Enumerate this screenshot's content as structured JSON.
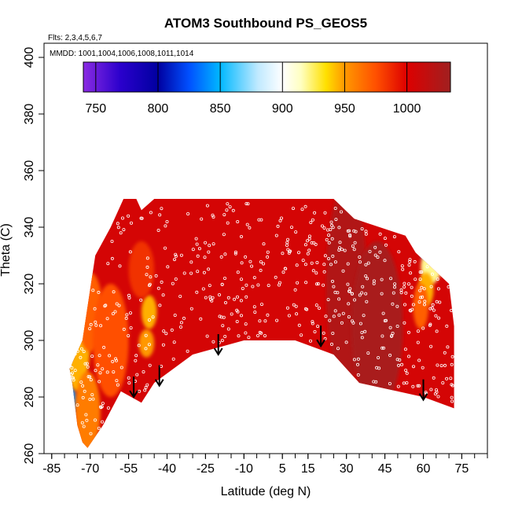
{
  "chart_data": {
    "type": "heatmap",
    "title": "ATOM3 Southbound PS_GEOS5",
    "flights_label": "Flts: 2,3,4,5,6,7",
    "mmdd_label": "MMDD: 1001,1004,1006,1008,1011,1014",
    "xlabel": "Latitude (deg N)",
    "ylabel": "Theta (C)",
    "xlim": [
      -88,
      85
    ],
    "ylim": [
      260,
      405
    ],
    "x_ticks": [
      -85,
      -70,
      -55,
      -40,
      -25,
      -10,
      5,
      15,
      30,
      45,
      60,
      75
    ],
    "x_minor_step": 5,
    "y_ticks": [
      260,
      280,
      300,
      320,
      340,
      360,
      380,
      400
    ],
    "colorbar": {
      "ticks": [
        750,
        800,
        850,
        900,
        950,
        1000
      ],
      "range": [
        740,
        1035
      ],
      "stops": [
        {
          "v": 740,
          "c": "#8a2be2"
        },
        {
          "v": 770,
          "c": "#2a00cc"
        },
        {
          "v": 800,
          "c": "#0000a0"
        },
        {
          "v": 825,
          "c": "#0050ff"
        },
        {
          "v": 850,
          "c": "#00b8ff"
        },
        {
          "v": 880,
          "c": "#bfe9ff"
        },
        {
          "v": 900,
          "c": "#ffffff"
        },
        {
          "v": 915,
          "c": "#ffffc0"
        },
        {
          "v": 935,
          "c": "#ffe000"
        },
        {
          "v": 950,
          "c": "#ff9800"
        },
        {
          "v": 975,
          "c": "#ff5000"
        },
        {
          "v": 1000,
          "c": "#dd0000"
        },
        {
          "v": 1035,
          "c": "#a02020"
        }
      ]
    },
    "domain_top": [
      [
        -73,
        300
      ],
      [
        -68,
        330
      ],
      [
        -62,
        340
      ],
      [
        -57,
        350
      ],
      [
        -52,
        350
      ],
      [
        -50,
        346
      ],
      [
        -45,
        350
      ],
      [
        25,
        350
      ],
      [
        33,
        343
      ],
      [
        53,
        337
      ],
      [
        57,
        331
      ],
      [
        70,
        320
      ],
      [
        72,
        305
      ],
      [
        72,
        280
      ]
    ],
    "domain_bottom": [
      [
        -78,
        290
      ],
      [
        -77,
        285
      ],
      [
        -75,
        270
      ],
      [
        -73,
        264
      ],
      [
        -71,
        262
      ],
      [
        -65,
        270
      ],
      [
        -58,
        282
      ],
      [
        -50,
        278
      ],
      [
        -45,
        285
      ],
      [
        -30,
        295
      ],
      [
        -10,
        300
      ],
      [
        10,
        300
      ],
      [
        25,
        295
      ],
      [
        35,
        285
      ],
      [
        50,
        282
      ],
      [
        60,
        280
      ],
      [
        72,
        276
      ]
    ],
    "features": [
      {
        "lat": -80,
        "theta": 303,
        "val": 820,
        "rx": 3,
        "ry": 6
      },
      {
        "lat": -79,
        "theta": 291,
        "val": 800,
        "rx": 3,
        "ry": 8
      },
      {
        "lat": -78,
        "theta": 278,
        "val": 840,
        "rx": 3,
        "ry": 6
      },
      {
        "lat": -75,
        "theta": 300,
        "val": 945,
        "rx": 5,
        "ry": 18
      },
      {
        "lat": -70,
        "theta": 310,
        "val": 970,
        "rx": 5,
        "ry": 14
      },
      {
        "lat": -71,
        "theta": 275,
        "val": 960,
        "rx": 5,
        "ry": 14
      },
      {
        "lat": -62,
        "theta": 300,
        "val": 975,
        "rx": 7,
        "ry": 20
      },
      {
        "lat": -47,
        "theta": 310,
        "val": 945,
        "rx": 3,
        "ry": 6
      },
      {
        "lat": -48,
        "theta": 299,
        "val": 950,
        "rx": 3,
        "ry": 5
      },
      {
        "lat": -50,
        "theta": 325,
        "val": 985,
        "rx": 5,
        "ry": 10
      },
      {
        "lat": 30,
        "theta": 320,
        "val": 1025,
        "rx": 8,
        "ry": 35
      },
      {
        "lat": 42,
        "theta": 305,
        "val": 1030,
        "rx": 10,
        "ry": 30
      },
      {
        "lat": 62,
        "theta": 331,
        "val": 830,
        "rx": 3,
        "ry": 3
      },
      {
        "lat": 63,
        "theta": 326,
        "val": 920,
        "rx": 4,
        "ry": 6
      },
      {
        "lat": 61,
        "theta": 318,
        "val": 945,
        "rx": 3,
        "ry": 6
      },
      {
        "lat": 59,
        "theta": 312,
        "val": 970,
        "rx": 3,
        "ry": 8
      }
    ],
    "arrows": [
      {
        "lat": -53,
        "theta": 280
      },
      {
        "lat": -43,
        "theta": 284
      },
      {
        "lat": -20,
        "theta": 295
      },
      {
        "lat": 20,
        "theta": 298
      },
      {
        "lat": 60,
        "theta": 279
      }
    ]
  }
}
